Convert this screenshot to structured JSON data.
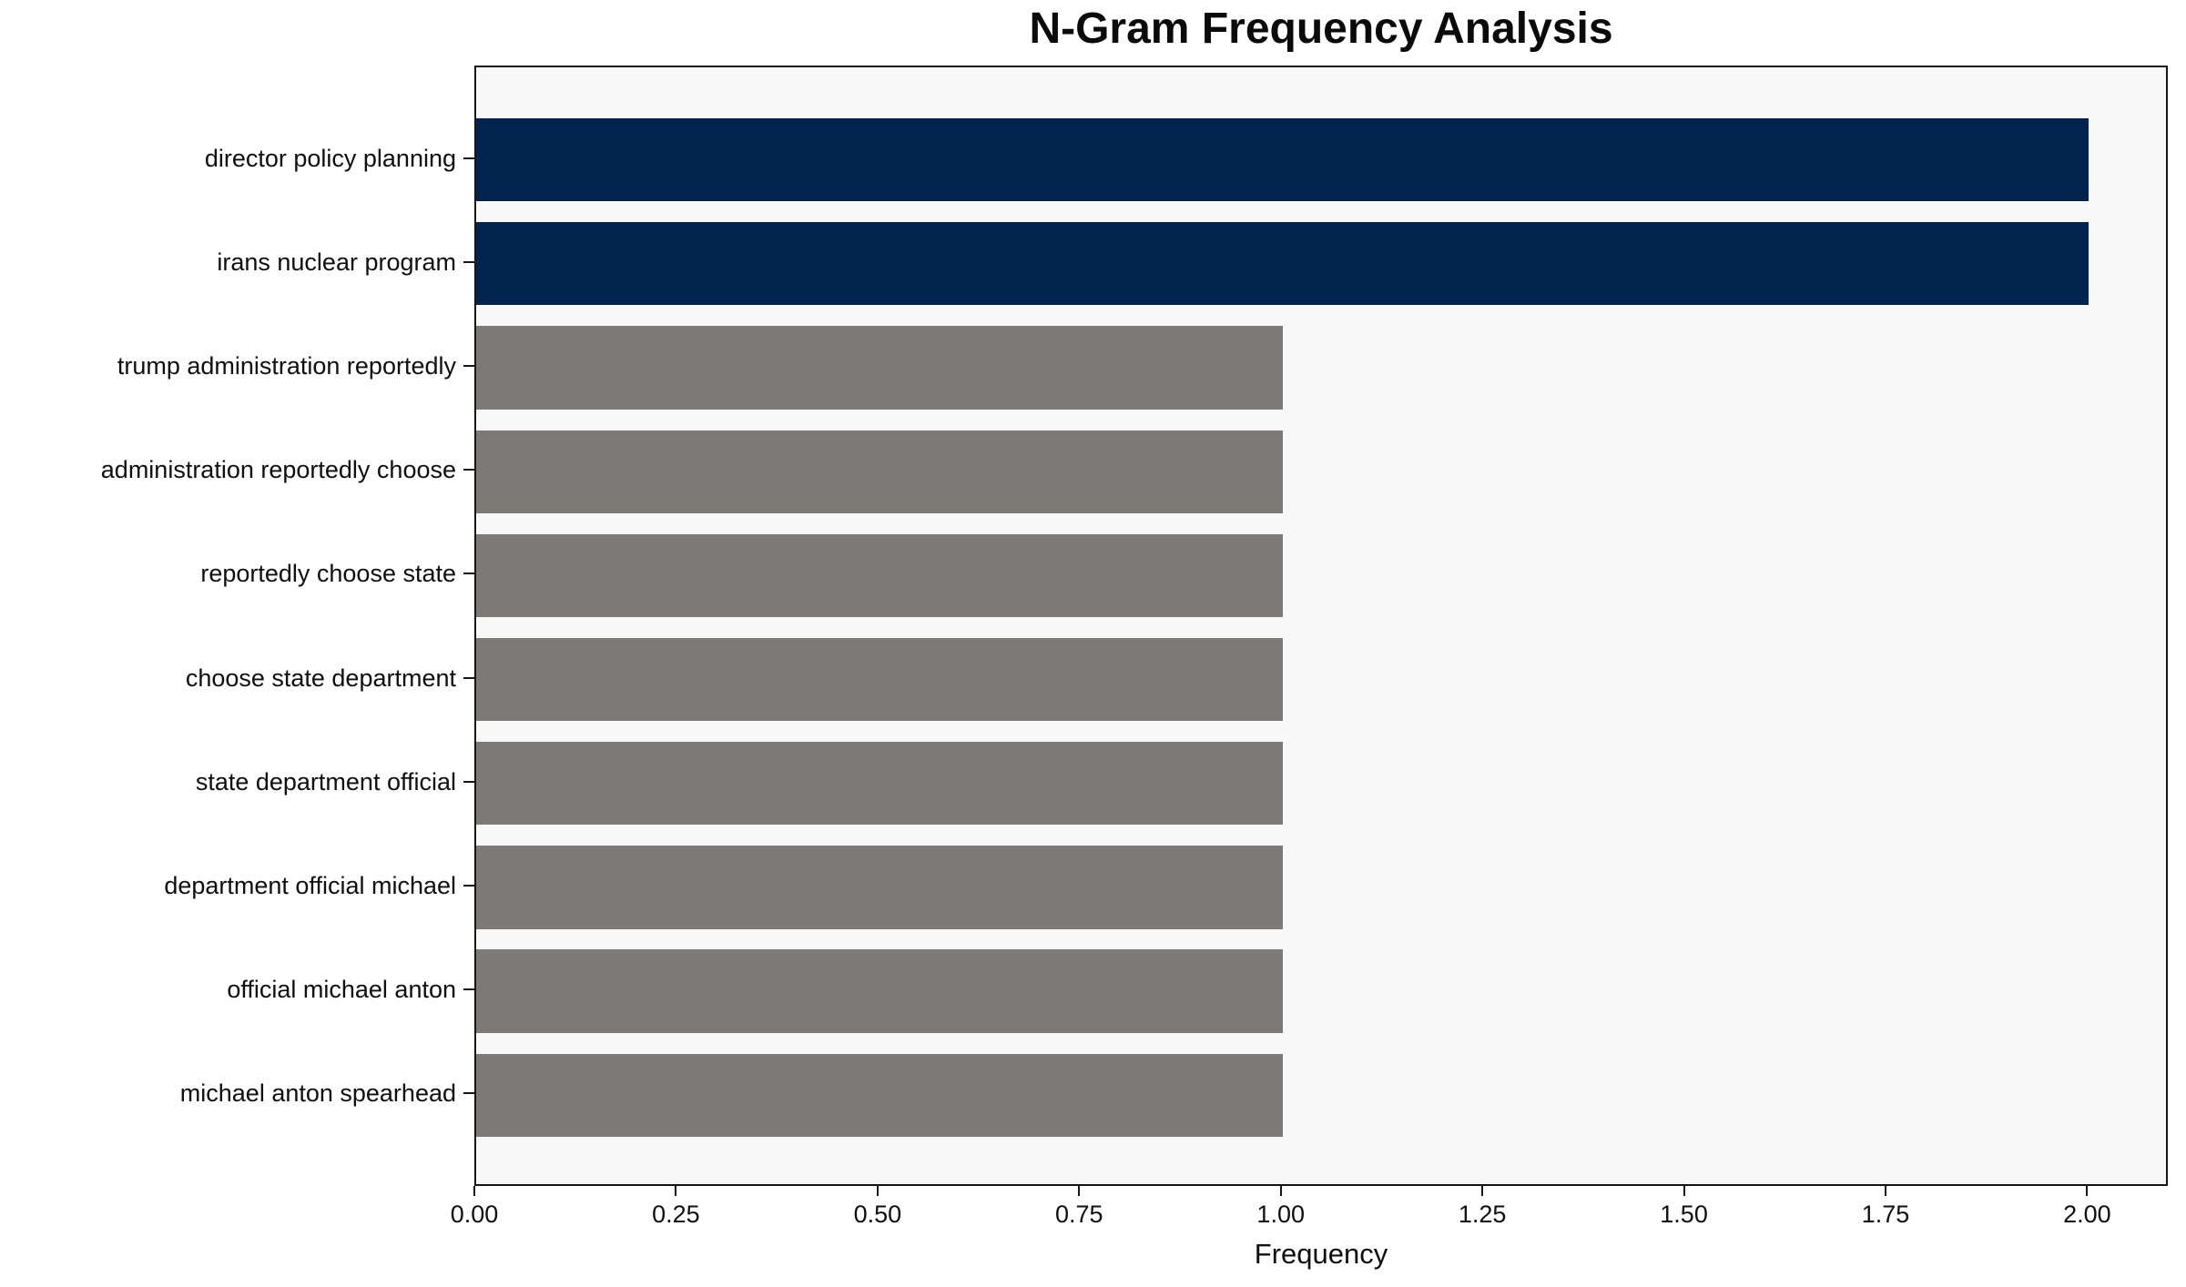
{
  "chart_data": {
    "type": "bar",
    "orientation": "horizontal",
    "title": "N-Gram Frequency Analysis",
    "xlabel": "Frequency",
    "ylabel": "",
    "categories": [
      "director policy planning",
      "irans nuclear program",
      "trump administration reportedly",
      "administration reportedly choose",
      "reportedly choose state",
      "choose state department",
      "state department official",
      "department official michael",
      "official michael anton",
      "michael anton spearhead"
    ],
    "values": [
      2,
      2,
      1,
      1,
      1,
      1,
      1,
      1,
      1,
      1
    ],
    "bar_colors": [
      "#01244e",
      "#01244e",
      "#7b7a77",
      "#7b7a77",
      "#7b7a77",
      "#7b7a77",
      "#7b7a77",
      "#7b7a77",
      "#7b7a77",
      "#7b7a77"
    ],
    "xlim": [
      0,
      2.1
    ],
    "xticks": [
      0.0,
      0.25,
      0.5,
      0.75,
      1.0,
      1.25,
      1.5,
      1.75,
      2.0
    ],
    "xtick_labels": [
      "0.00",
      "0.25",
      "0.50",
      "0.75",
      "1.00",
      "1.25",
      "1.50",
      "1.75",
      "2.00"
    ],
    "grid": false,
    "legend": null,
    "colors": {
      "highlight_bar": "#01244e",
      "default_bar": "#7b7a77",
      "plot_background": "#f8f8f8",
      "figure_background": "#ffffff",
      "spine": "#161616",
      "text": "#0f0f0f"
    }
  }
}
